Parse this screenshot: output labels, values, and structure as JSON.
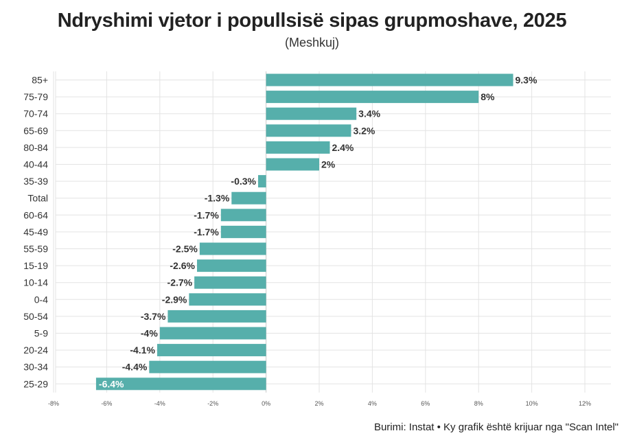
{
  "header": {
    "title": "Ndryshimi vjetor i popullsisë sipas grupmoshave, 2025",
    "subtitle": "(Meshkuj)"
  },
  "footer": {
    "source": "Burimi: Instat • Ky grafik është krijuar nga \"Scan Intel\""
  },
  "colors": {
    "bar": "#56afab",
    "grid": "#e3e3e3",
    "zero_line": "#c9c9c9",
    "label": "#333333",
    "inside_label": "#ffffff"
  },
  "chart_data": {
    "type": "bar",
    "orientation": "horizontal",
    "categories": [
      "85+",
      "75-79",
      "70-74",
      "65-69",
      "80-84",
      "40-44",
      "35-39",
      "Total",
      "60-64",
      "45-49",
      "55-59",
      "15-19",
      "10-14",
      "0-4",
      "50-54",
      "5-9",
      "20-24",
      "30-34",
      "25-29"
    ],
    "values": [
      9.3,
      8,
      3.4,
      3.2,
      2.4,
      2,
      -0.3,
      -1.3,
      -1.7,
      -1.7,
      -2.5,
      -2.6,
      -2.7,
      -2.9,
      -3.7,
      -4,
      -4.1,
      -4.4,
      -6.4
    ],
    "value_labels": [
      "9.3%",
      "8%",
      "3.4%",
      "3.2%",
      "2.4%",
      "2%",
      "-0.3%",
      "-1.3%",
      "-1.7%",
      "-1.7%",
      "-2.5%",
      "-2.6%",
      "-2.7%",
      "-2.9%",
      "-3.7%",
      "-4%",
      "-4.1%",
      "-4.4%",
      "-6.4%"
    ],
    "x_ticks": [
      -8,
      -6,
      -4,
      -2,
      0,
      2,
      4,
      6,
      8,
      10,
      12
    ],
    "x_tick_labels": [
      "-8%",
      "-6%",
      "-4%",
      "-2%",
      "0%",
      "2%",
      "4%",
      "6%",
      "8%",
      "10%",
      "12%"
    ],
    "xlim": [
      -8,
      12
    ],
    "grid": true
  }
}
